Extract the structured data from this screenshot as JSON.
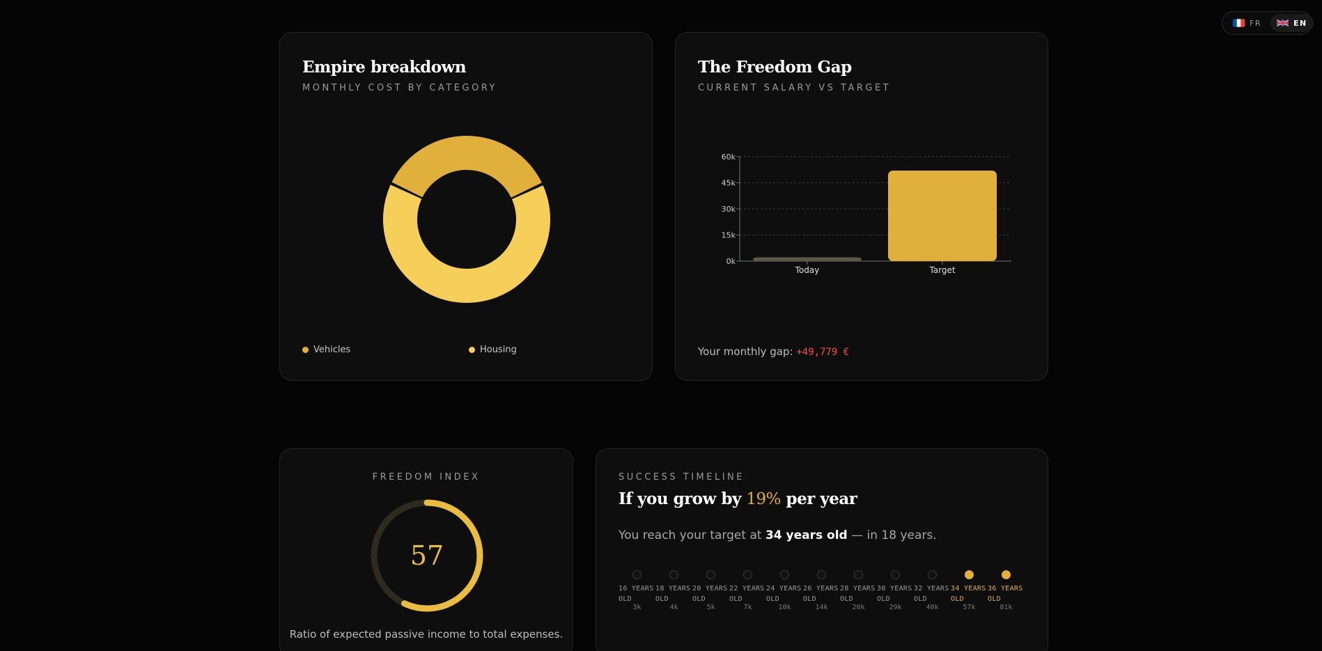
{
  "language": {
    "options": [
      {
        "code": "FR",
        "flag": "france-flag-icon",
        "active": false
      },
      {
        "code": "EN",
        "flag": "uk-flag-icon",
        "active": true
      }
    ]
  },
  "empire": {
    "title": "Empire breakdown",
    "subtitle": "MONTHLY COST BY CATEGORY",
    "legend": [
      {
        "label": "Vehicles",
        "color": "#e0b03a"
      },
      {
        "label": "Housing",
        "color": "#f5cf5a"
      }
    ]
  },
  "gap": {
    "title": "The Freedom Gap",
    "subtitle": "CURRENT SALARY VS TARGET",
    "gap_label": "Your monthly gap:",
    "gap_value": "+49,779 €",
    "gap_color": "#ff4a4a"
  },
  "freedom": {
    "label": "FREEDOM INDEX",
    "value": "57",
    "progress": 0.57,
    "description": "Ratio of expected passive income to total expenses."
  },
  "timeline": {
    "label": "SUCCESS TIMELINE",
    "title_prefix": "If you grow by",
    "growth_rate": "19%",
    "title_suffix": "per year",
    "summary_prefix": "You reach your target at",
    "summary_age": "34 years old",
    "summary_suffix": "— in 18 years.",
    "steps": [
      {
        "age": "16 YEARS OLD",
        "value": "3k",
        "reached": false
      },
      {
        "age": "18 YEARS OLD",
        "value": "4k",
        "reached": false
      },
      {
        "age": "20 YEARS OLD",
        "value": "5k",
        "reached": false
      },
      {
        "age": "22 YEARS OLD",
        "value": "7k",
        "reached": false
      },
      {
        "age": "24 YEARS OLD",
        "value": "10k",
        "reached": false
      },
      {
        "age": "26 YEARS OLD",
        "value": "14k",
        "reached": false
      },
      {
        "age": "28 YEARS OLD",
        "value": "20k",
        "reached": false
      },
      {
        "age": "30 YEARS OLD",
        "value": "29k",
        "reached": false
      },
      {
        "age": "32 YEARS OLD",
        "value": "40k",
        "reached": false
      },
      {
        "age": "34 YEARS OLD",
        "value": "57k",
        "reached": true
      },
      {
        "age": "36 YEARS OLD",
        "value": "81k",
        "reached": true
      }
    ]
  },
  "colors": {
    "accent": "#e0b03a",
    "accent_light": "#f5cf5a",
    "muted_bar": "#5c574a"
  },
  "chart_data": [
    {
      "type": "pie",
      "variant": "donut",
      "labels": [
        "Vehicles",
        "Housing"
      ],
      "values": [
        36,
        64
      ],
      "colors": [
        "#e0b03a",
        "#f5cf5a"
      ]
    },
    {
      "type": "bar",
      "categories": [
        "Today",
        "Target"
      ],
      "values": [
        2200,
        52000
      ],
      "colors": [
        "#5c574a",
        "#e0b03a"
      ],
      "ylim": [
        0,
        60000
      ],
      "yticks": [
        "0k",
        "15k",
        "30k",
        "45k",
        "60k"
      ],
      "ytick_values": [
        0,
        15000,
        30000,
        45000,
        60000
      ],
      "grid": true
    }
  ]
}
